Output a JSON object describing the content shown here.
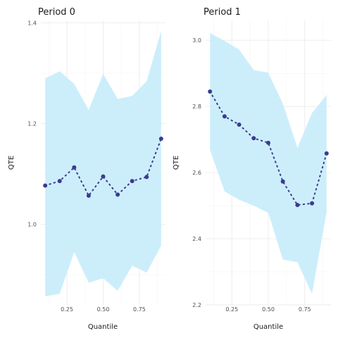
{
  "chart_data": [
    {
      "type": "line",
      "title": "Period 0",
      "xlabel": "Quantile",
      "ylabel": "QTE",
      "x": [
        0.1,
        0.2,
        0.3,
        0.4,
        0.5,
        0.6,
        0.7,
        0.8,
        0.9
      ],
      "estimate": [
        1.077,
        1.086,
        1.113,
        1.057,
        1.095,
        1.059,
        1.086,
        1.094,
        1.17
      ],
      "ci_upper": [
        1.29,
        1.304,
        1.279,
        1.227,
        1.299,
        1.249,
        1.255,
        1.284,
        1.384
      ],
      "ci_lower": [
        0.857,
        0.862,
        0.945,
        0.884,
        0.893,
        0.868,
        0.918,
        0.904,
        0.958
      ],
      "xlim": [
        0.07,
        0.93
      ],
      "ylim": [
        0.84,
        1.405
      ],
      "xticks": [
        0.25,
        0.5,
        0.75
      ],
      "xtick_labels": [
        "0.25",
        "0.50",
        "0.75"
      ],
      "yticks": [
        1.0,
        1.2,
        1.4
      ],
      "ytick_labels": [
        "1.0",
        "1.2",
        "1.4"
      ],
      "grid": true,
      "band_color": "#c6ecfb",
      "point_color": "#3b3b8f"
    },
    {
      "type": "line",
      "title": "Period 1",
      "xlabel": "Quantile",
      "ylabel": "QTE",
      "x": [
        0.1,
        0.2,
        0.3,
        0.4,
        0.5,
        0.6,
        0.7,
        0.8,
        0.9
      ],
      "estimate": [
        2.845,
        2.77,
        2.745,
        2.704,
        2.69,
        2.573,
        2.502,
        2.507,
        2.658
      ],
      "ci_upper": [
        3.022,
        2.998,
        2.972,
        2.91,
        2.902,
        2.808,
        2.675,
        2.78,
        2.835
      ],
      "ci_lower": [
        2.669,
        2.543,
        2.518,
        2.5,
        2.478,
        2.337,
        2.329,
        2.234,
        2.48
      ],
      "xlim": [
        0.07,
        0.93
      ],
      "ylim": [
        2.2,
        3.06
      ],
      "xticks": [
        0.25,
        0.5,
        0.75
      ],
      "xtick_labels": [
        "0.25",
        "0.50",
        "0.75"
      ],
      "yticks": [
        2.2,
        2.4,
        2.6,
        2.8,
        3.0
      ],
      "ytick_labels": [
        "2.2",
        "2.4",
        "2.6",
        "2.8",
        "3.0"
      ],
      "grid": true,
      "band_color": "#c6ecfb",
      "point_color": "#3b3b8f"
    }
  ]
}
